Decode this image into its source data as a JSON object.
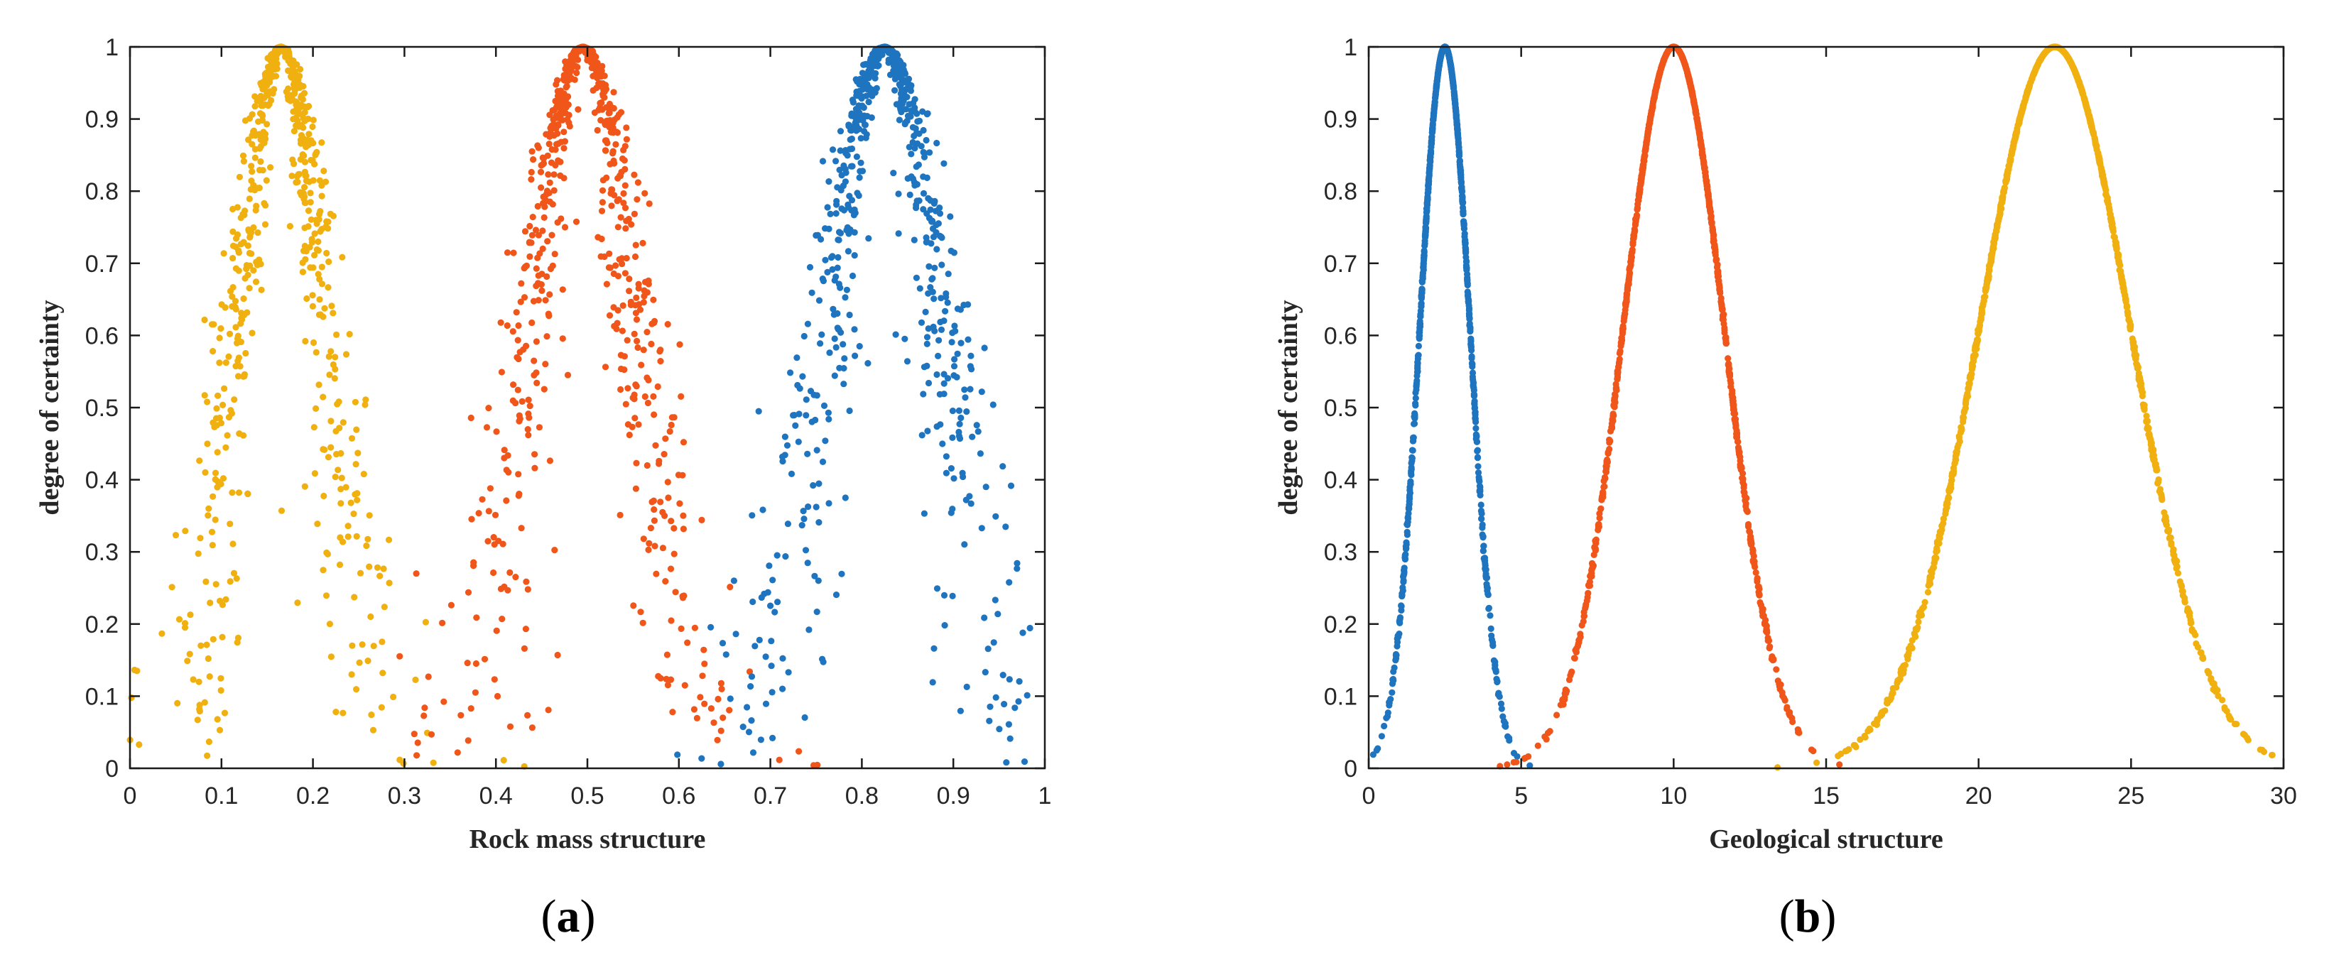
{
  "chart_data": [
    {
      "panel": "(a)",
      "panel_letter": "a",
      "type": "scatter",
      "title": "",
      "xlabel": "Rock mass structure",
      "ylabel": "degree of certainty",
      "xlim": [
        0,
        1
      ],
      "ylim": [
        0,
        1
      ],
      "xticks": [
        "0",
        "0.1",
        "0.2",
        "0.3",
        "0.4",
        "0.5",
        "0.6",
        "0.7",
        "0.8",
        "0.9",
        "1"
      ],
      "yticks": [
        "0",
        "0.1",
        "0.2",
        "0.3",
        "0.4",
        "0.5",
        "0.6",
        "0.7",
        "0.8",
        "0.9",
        "1"
      ],
      "grid": false,
      "legend": "none",
      "cloud_model": true,
      "series": [
        {
          "Ex": 0.165,
          "En": 0.048,
          "He": 0.014,
          "count": 700,
          "color": "#f0b010",
          "seed": 11
        },
        {
          "Ex": 0.495,
          "En": 0.058,
          "He": 0.016,
          "count": 700,
          "color": "#f0561a",
          "seed": 23
        },
        {
          "Ex": 0.825,
          "En": 0.064,
          "He": 0.018,
          "count": 700,
          "color": "#1f74bf",
          "seed": 37
        }
      ]
    },
    {
      "panel": "(b)",
      "panel_letter": "b",
      "type": "scatter",
      "title": "",
      "xlabel": "Geological structure",
      "ylabel": "degree of certainty",
      "xlim": [
        0,
        30
      ],
      "ylim": [
        0,
        1
      ],
      "xticks": [
        "0",
        "5",
        "10",
        "15",
        "20",
        "25",
        "30"
      ],
      "yticks": [
        "0",
        "0.1",
        "0.2",
        "0.3",
        "0.4",
        "0.5",
        "0.6",
        "0.7",
        "0.8",
        "0.9",
        "1"
      ],
      "grid": false,
      "legend": "none",
      "cloud_model": true,
      "series": [
        {
          "Ex": 2.5,
          "En": 0.83,
          "He": 0.006,
          "count": 1000,
          "color": "#1f74bf",
          "seed": 41
        },
        {
          "Ex": 10.0,
          "En": 1.67,
          "He": 0.01,
          "count": 1200,
          "color": "#f0561a",
          "seed": 53
        },
        {
          "Ex": 22.5,
          "En": 2.5,
          "He": 0.014,
          "count": 1400,
          "color": "#f0b010",
          "seed": 67
        }
      ]
    }
  ]
}
